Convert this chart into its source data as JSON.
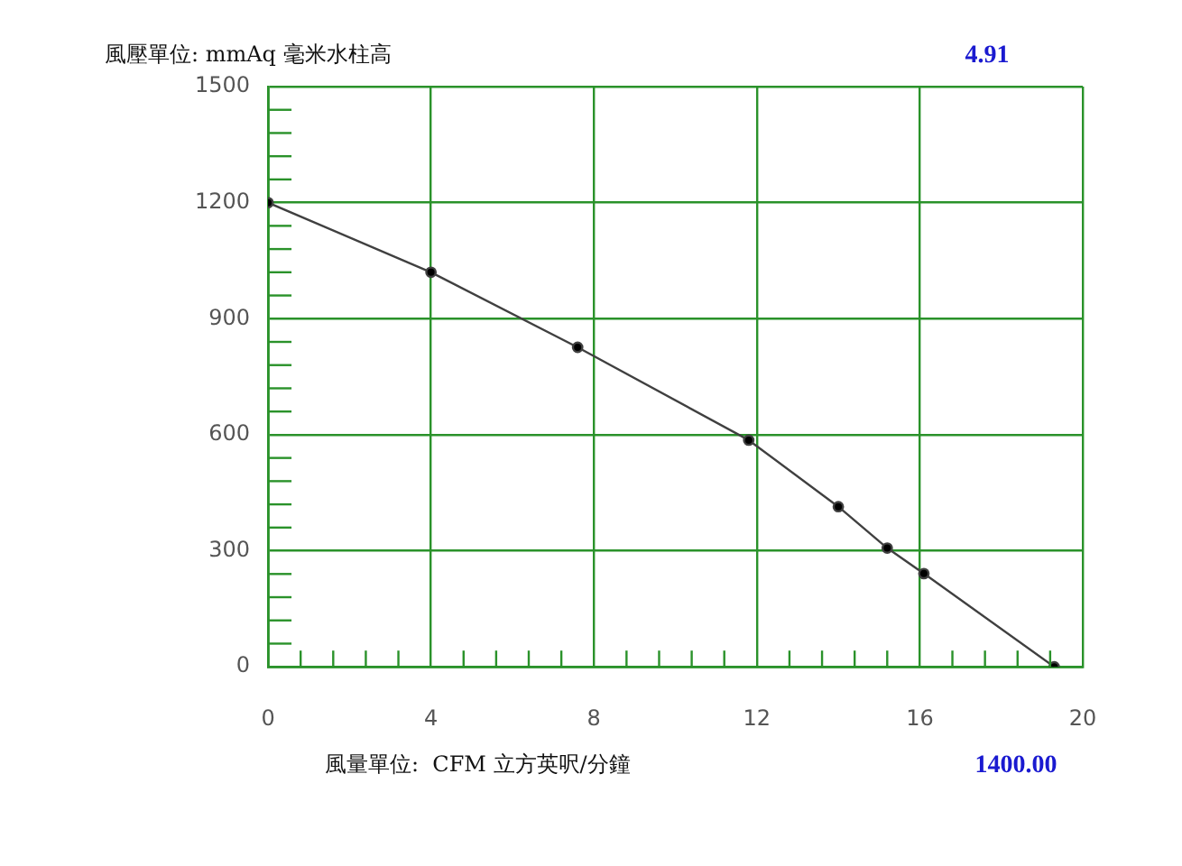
{
  "chart_data": {
    "type": "line",
    "xlabel": "風量單位:  CFM 立方英呎/分鐘",
    "ylabel": "風壓單位: mmAq 毫米水柱高",
    "annotations": [
      "4.91",
      "1400.00"
    ],
    "x": [
      0,
      4,
      7.6,
      11.8,
      14,
      15.2,
      16.1,
      19.3
    ],
    "series": [
      {
        "color": "#404040",
        "values": [
          1200,
          1020,
          826,
          586,
          414,
          307,
          241,
          0
        ]
      }
    ],
    "xlim": [
      0,
      20
    ],
    "ylim": [
      0,
      1500
    ],
    "xticks": [
      0,
      {
        "value": 0.8,
        "label": null
      },
      {
        "value": 1.6,
        "label": null
      },
      {
        "value": 2.4,
        "label": null
      },
      {
        "value": 3.2,
        "label": null
      },
      4,
      {
        "value": 4.8,
        "label": null
      },
      {
        "value": 5.6,
        "label": null
      },
      {
        "value": 6.4,
        "label": null
      },
      {
        "value": 7.2,
        "label": null
      },
      8,
      {
        "value": 8.8,
        "label": null
      },
      {
        "value": 9.6,
        "label": null
      },
      {
        "value": 10.4,
        "label": null
      },
      {
        "value": 11.2,
        "label": null
      },
      12,
      {
        "value": 12.8,
        "label": null
      },
      {
        "value": 13.6,
        "label": null
      },
      {
        "value": 14.4,
        "label": null
      },
      {
        "value": 15.2,
        "label": null
      },
      16,
      {
        "value": 16.8,
        "label": null
      },
      {
        "value": 17.6,
        "label": null
      },
      {
        "value": 18.4,
        "label": null
      },
      {
        "value": 19.2,
        "label": null
      },
      20
    ],
    "yticks": [
      0,
      {
        "value": 60,
        "label": null
      },
      {
        "value": 120,
        "label": null
      },
      {
        "value": 180,
        "label": null
      },
      {
        "value": 240,
        "label": null
      },
      300,
      {
        "value": 360,
        "label": null
      },
      {
        "value": 420,
        "label": null
      },
      {
        "value": 480,
        "label": null
      },
      {
        "value": 540,
        "label": null
      },
      600,
      {
        "value": 660,
        "label": null
      },
      {
        "value": 720,
        "label": null
      },
      {
        "value": 780,
        "label": null
      },
      {
        "value": 840,
        "label": null
      },
      900,
      {
        "value": 960,
        "label": null
      },
      {
        "value": 1020,
        "label": null
      },
      {
        "value": 1080,
        "label": null
      },
      {
        "value": 1140,
        "label": null
      },
      1200,
      {
        "value": 1260,
        "label": null
      },
      {
        "value": 1320,
        "label": null
      },
      {
        "value": 1380,
        "label": null
      },
      {
        "value": 1440,
        "label": null
      },
      1500
    ],
    "grid": true,
    "legend": false,
    "marker": "circle",
    "line_style": "solid"
  }
}
